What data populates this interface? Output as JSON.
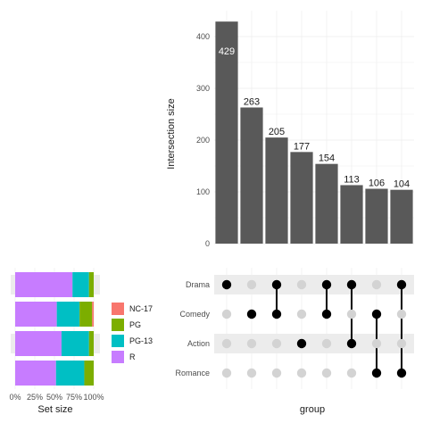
{
  "chart_data": {
    "type": "bar",
    "intersections": {
      "ylabel": "Intersection size",
      "ylim": [
        0,
        450
      ],
      "yticks": [
        0,
        100,
        200,
        300,
        400
      ],
      "values": [
        429,
        263,
        205,
        177,
        154,
        113,
        106,
        104
      ],
      "value_labels": [
        "429",
        "263",
        "205",
        "177",
        "154",
        "113",
        "106",
        "104"
      ],
      "sets_per_bar": [
        [
          "Drama"
        ],
        [
          "Comedy"
        ],
        [
          "Drama",
          "Comedy"
        ],
        [
          "Action"
        ],
        [
          "Drama",
          "Comedy"
        ],
        [
          "Drama",
          "Action"
        ],
        [
          "Comedy",
          "Romance"
        ],
        [
          "Drama",
          "Romance"
        ]
      ]
    },
    "matrix": {
      "sets": [
        "Drama",
        "Comedy",
        "Action",
        "Romance"
      ],
      "xlabel": "group"
    },
    "set_size": {
      "type": "stacked-bar-percent",
      "xlabel": "Set size",
      "xticks": [
        "0%",
        "25%",
        "50%",
        "75%",
        "100%"
      ],
      "rows": [
        {
          "R": 0.73,
          "PG-13": 0.21,
          "PG": 0.06,
          "NC-17": 0.0
        },
        {
          "R": 0.53,
          "PG-13": 0.29,
          "PG": 0.16,
          "NC-17": 0.02
        },
        {
          "R": 0.59,
          "PG-13": 0.35,
          "PG": 0.06,
          "NC-17": 0.0
        },
        {
          "R": 0.52,
          "PG-13": 0.36,
          "PG": 0.12,
          "NC-17": 0.0
        }
      ],
      "legend": [
        {
          "label": "NC-17",
          "color": "#f8766d"
        },
        {
          "label": "PG",
          "color": "#7cae00"
        },
        {
          "label": "PG-13",
          "color": "#00bfc4"
        },
        {
          "label": "R",
          "color": "#c77cff"
        }
      ],
      "stack_order": [
        "R",
        "PG-13",
        "PG",
        "NC-17"
      ]
    },
    "colors": {
      "bar": "#595959",
      "dot_on": "#000000",
      "dot_off": "#d3d3d3",
      "stripe": "#ececec",
      "grid": "#ebebeb"
    }
  }
}
